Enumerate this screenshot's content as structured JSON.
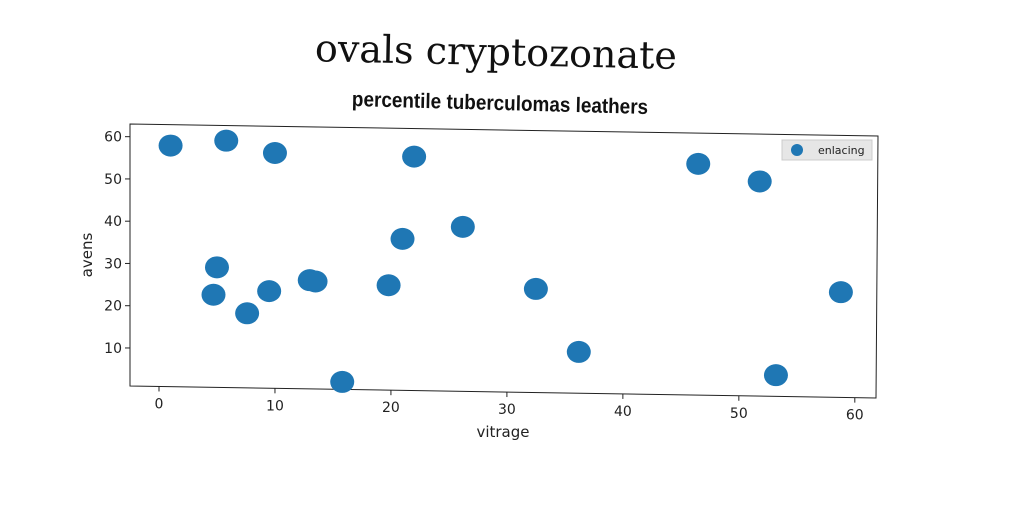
{
  "chart_data": {
    "type": "scatter",
    "title": "ovals cryptozonate",
    "subtitle": "percentile tuberculomas leathers",
    "xlabel": "vitrage",
    "ylabel": "avens",
    "xlim": [
      -2.5,
      62
    ],
    "ylim": [
      1,
      63
    ],
    "xticks": [
      "0",
      "10",
      "20",
      "30",
      "40",
      "50",
      "60"
    ],
    "yticks": [
      "10",
      "20",
      "30",
      "40",
      "50",
      "60"
    ],
    "series": [
      {
        "name": "enlacing",
        "color": "#1f77b4",
        "points": [
          {
            "x": 1.0,
            "y": 58
          },
          {
            "x": 5.8,
            "y": 59.3
          },
          {
            "x": 10.0,
            "y": 56.5
          },
          {
            "x": 22.0,
            "y": 56
          },
          {
            "x": 46.5,
            "y": 55
          },
          {
            "x": 51.8,
            "y": 51
          },
          {
            "x": 26.2,
            "y": 39.5
          },
          {
            "x": 21.0,
            "y": 36.5
          },
          {
            "x": 5.0,
            "y": 29.3
          },
          {
            "x": 4.7,
            "y": 22.8
          },
          {
            "x": 7.6,
            "y": 18.5
          },
          {
            "x": 9.5,
            "y": 23.8
          },
          {
            "x": 13.0,
            "y": 26.5
          },
          {
            "x": 13.5,
            "y": 26.2
          },
          {
            "x": 19.8,
            "y": 25.5
          },
          {
            "x": 32.5,
            "y": 25
          },
          {
            "x": 58.8,
            "y": 25
          },
          {
            "x": 36.2,
            "y": 10.2
          },
          {
            "x": 15.8,
            "y": 2.5
          },
          {
            "x": 53.2,
            "y": 5.2
          }
        ]
      }
    ],
    "legend": "top-right"
  }
}
